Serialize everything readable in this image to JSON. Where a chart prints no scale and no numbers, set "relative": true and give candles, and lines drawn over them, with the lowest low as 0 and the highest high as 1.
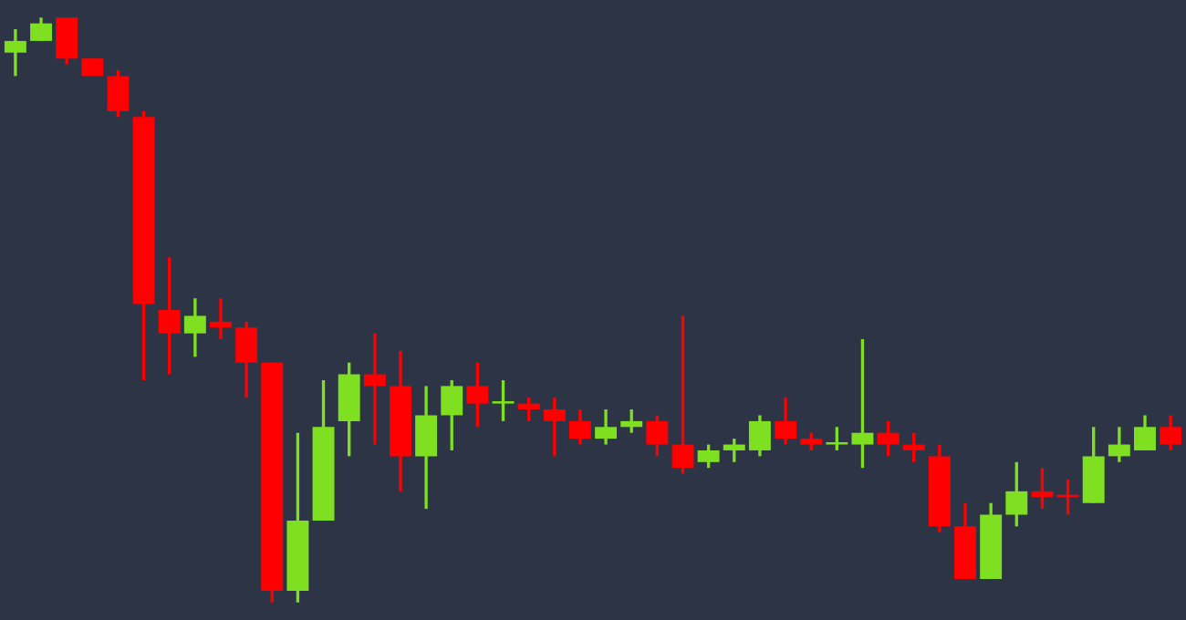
{
  "chart_data": {
    "type": "candlestick",
    "relative": true,
    "categories": [
      null,
      null,
      null,
      null,
      null,
      null,
      null,
      null,
      null,
      null,
      null,
      null,
      null,
      null,
      null,
      null,
      null,
      null,
      null,
      null,
      null,
      null,
      null,
      null,
      null,
      null,
      null,
      null,
      null,
      null,
      null,
      null,
      null,
      null,
      null,
      null,
      null,
      null,
      null,
      null,
      null,
      null,
      null,
      null,
      null,
      null
    ],
    "ohlc": [
      [
        0.94,
        0.98,
        0.9,
        0.96
      ],
      [
        0.96,
        1.0,
        0.96,
        0.99
      ],
      [
        1.0,
        1.0,
        0.92,
        0.93
      ],
      [
        0.93,
        0.93,
        0.9,
        0.9
      ],
      [
        0.9,
        0.91,
        0.83,
        0.84
      ],
      [
        0.83,
        0.84,
        0.38,
        0.51
      ],
      [
        0.5,
        0.59,
        0.39,
        0.46
      ],
      [
        0.46,
        0.52,
        0.42,
        0.49
      ],
      [
        0.48,
        0.52,
        0.45,
        0.47
      ],
      [
        0.47,
        0.48,
        0.35,
        0.41
      ],
      [
        0.41,
        0.41,
        0,
        0.02
      ],
      [
        0.02,
        0.29,
        0,
        0.14
      ],
      [
        0.14,
        0.38,
        0.14,
        0.3
      ],
      [
        0.31,
        0.41,
        0.25,
        0.39
      ],
      [
        0.39,
        0.46,
        0.27,
        0.37
      ],
      [
        0.37,
        0.43,
        0.19,
        0.25
      ],
      [
        0.25,
        0.37,
        0.16,
        0.32
      ],
      [
        0.32,
        0.38,
        0.26,
        0.37
      ],
      [
        0.37,
        0.41,
        0.3,
        0.34
      ],
      [
        0.34,
        0.38,
        0.31,
        0.34
      ],
      [
        0.34,
        0.35,
        0.31,
        0.33
      ],
      [
        0.33,
        0.35,
        0.25,
        0.31
      ],
      [
        0.31,
        0.33,
        0.27,
        0.28
      ],
      [
        0.28,
        0.33,
        0.27,
        0.3
      ],
      [
        0.3,
        0.33,
        0.29,
        0.31
      ],
      [
        0.31,
        0.32,
        0.25,
        0.27
      ],
      [
        0.27,
        0.49,
        0.22,
        0.23
      ],
      [
        0.24,
        0.27,
        0.23,
        0.26
      ],
      [
        0.26,
        0.28,
        0.24,
        0.27
      ],
      [
        0.26,
        0.32,
        0.25,
        0.31
      ],
      [
        0.31,
        0.35,
        0.27,
        0.28
      ],
      [
        0.28,
        0.29,
        0.26,
        0.27
      ],
      [
        0.27,
        0.3,
        0.26,
        0.27
      ],
      [
        0.27,
        0.45,
        0.23,
        0.29
      ],
      [
        0.29,
        0.31,
        0.25,
        0.27
      ],
      [
        0.27,
        0.29,
        0.24,
        0.26
      ],
      [
        0.25,
        0.27,
        0.12,
        0.13
      ],
      [
        0.13,
        0.17,
        0.04,
        0.04
      ],
      [
        0.04,
        0.17,
        0.04,
        0.15
      ],
      [
        0.15,
        0.24,
        0.13,
        0.19
      ],
      [
        0.19,
        0.23,
        0.16,
        0.18
      ],
      [
        0.18,
        0.21,
        0.15,
        0.18
      ],
      [
        0.17,
        0.3,
        0.17,
        0.25
      ],
      [
        0.25,
        0.3,
        0.24,
        0.27
      ],
      [
        0.26,
        0.32,
        0.26,
        0.3
      ],
      [
        0.3,
        0.32,
        0.26,
        0.27
      ]
    ],
    "colors": [
      "#7ee020",
      "#7ee020",
      "#ff0000",
      "#ff0000",
      "#ff0000",
      "#ff0000",
      "#ff0000",
      "#7ee020",
      "#ff0000",
      "#ff0000",
      "#ff0000",
      "#7ee020",
      "#7ee020",
      "#7ee020",
      "#ff0000",
      "#ff0000",
      "#7ee020",
      "#7ee020",
      "#ff0000",
      "#7ee020",
      "#ff0000",
      "#ff0000",
      "#ff0000",
      "#7ee020",
      "#7ee020",
      "#ff0000",
      "#ff0000",
      "#7ee020",
      "#7ee020",
      "#7ee020",
      "#ff0000",
      "#ff0000",
      "#7ee020",
      "#7ee020",
      "#ff0000",
      "#ff0000",
      "#ff0000",
      "#ff0000",
      "#7ee020",
      "#7ee020",
      "#ff0000",
      "#ff0000",
      "#7ee020",
      "#7ee020",
      "#7ee020",
      "#ff0000"
    ]
  }
}
